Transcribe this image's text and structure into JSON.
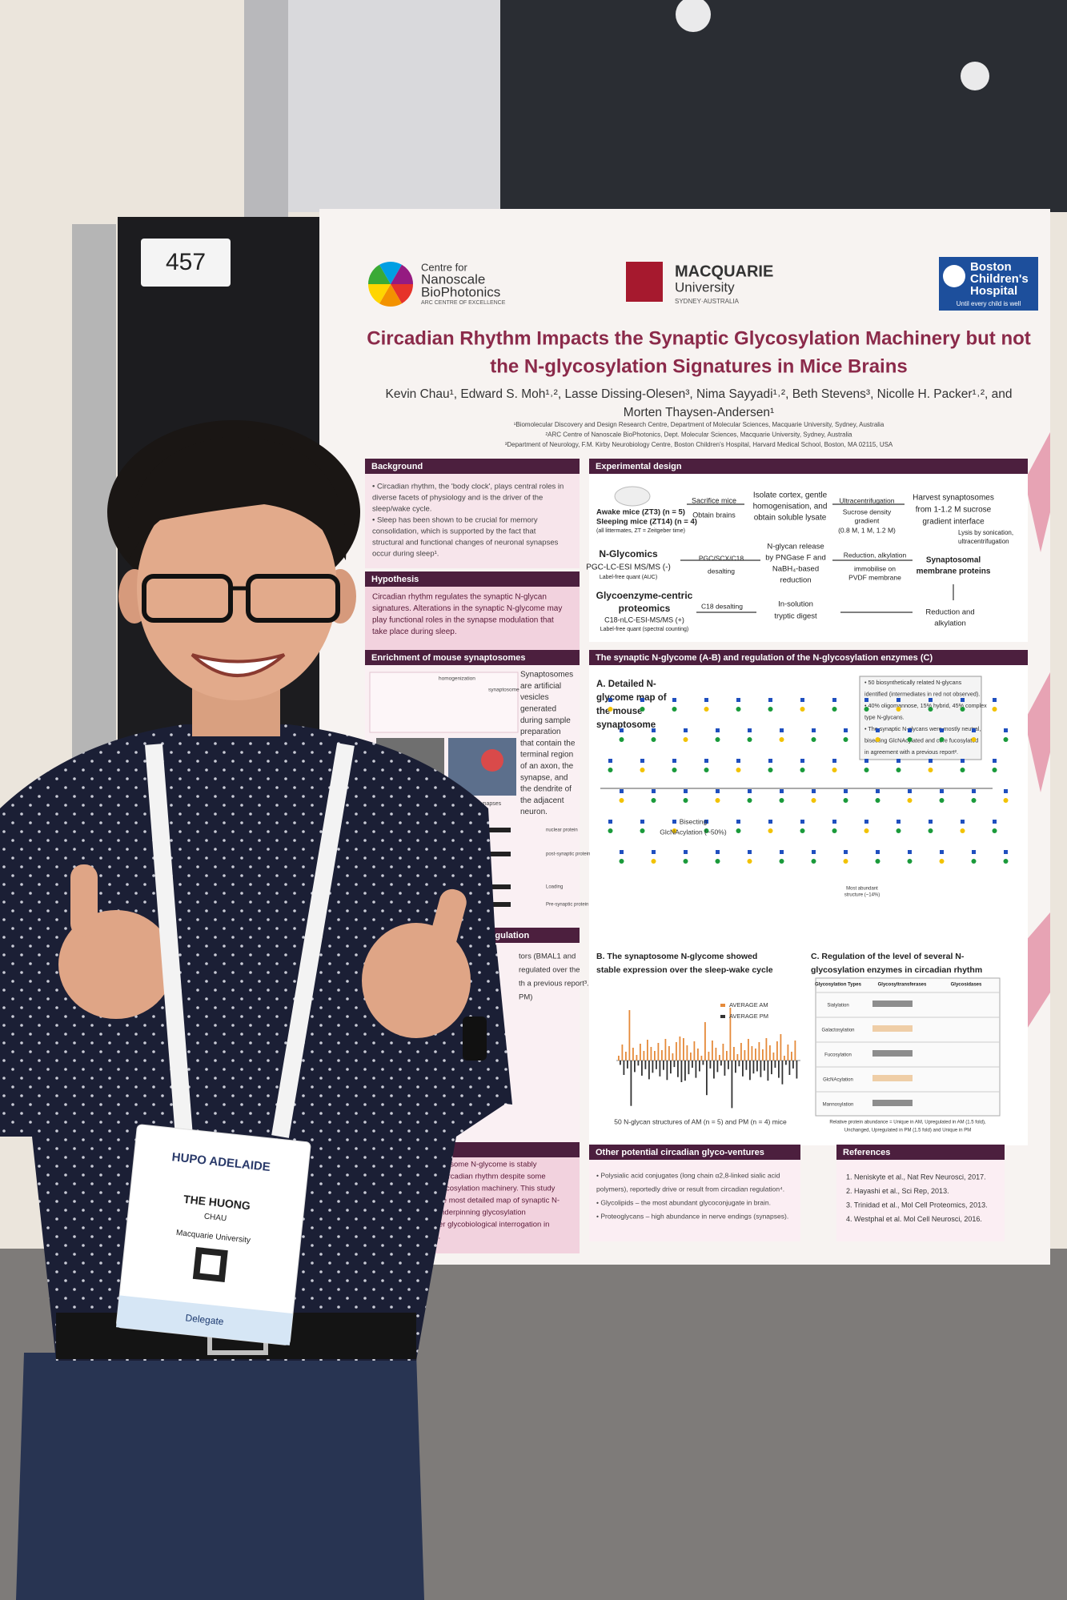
{
  "scene": {
    "poster_number": "457"
  },
  "poster": {
    "logos": {
      "nanoscale": [
        "Centre for",
        "Nanoscale",
        "BioPhotonics",
        "ARC CENTRE OF EXCELLENCE"
      ],
      "macquarie": [
        "MACQUARIE",
        "University",
        "SYDNEY·AUSTRALIA"
      ],
      "boston": [
        "Boston",
        "Children's",
        "Hospital",
        "Until every child is well"
      ]
    },
    "title": [
      "Circadian Rhythm Impacts the Synaptic Glycosylation Machinery but not",
      "the N-glycosylation Signatures in Mice Brains"
    ],
    "authors": [
      "Kevin Chau¹, Edward S. Moh¹˒², Lasse Dissing-Olesen³, Nima Sayyadi¹˒², Beth Stevens³, Nicolle H. Packer¹˒², and",
      "Morten Thaysen-Andersen¹"
    ],
    "affiliations": [
      "¹Biomolecular Discovery and Design Research Centre, Department of Molecular Sciences, Macquarie University, Sydney, Australia",
      "²ARC Centre of Nanoscale BioPhotonics, Dept. Molecular Sciences, Macquarie University, Sydney, Australia",
      "³Department of Neurology, F.M. Kirby Neurobiology Centre, Boston Children's Hospital, Harvard Medical School, Boston, MA 02115, USA"
    ],
    "background": {
      "heading": "Background",
      "lines": [
        "• Circadian rhythm, the 'body clock', plays central roles in",
        "diverse facets of physiology and is the driver of the",
        "sleep/wake cycle.",
        "• Sleep has been shown to be crucial for memory",
        "consolidation, which is supported by the fact that",
        "structural and functional changes of neuronal synapses",
        "occur during sleep¹."
      ]
    },
    "hypothesis": {
      "heading": "Hypothesis",
      "lines": [
        "Circadian rhythm regulates the synaptic N-glycan",
        "signatures. Alterations in the synaptic N-glycome may",
        "play functional roles in the synapse modulation that",
        "take place during sleep."
      ]
    },
    "experimental_design": {
      "heading": "Experimental design",
      "labels": [
        "Awake mice (ZT3) (n = 5)",
        "Sleeping mice (ZT14) (n = 4)",
        "(all littermates, ZT = Zeitgeber time)",
        "Sacrifice mice",
        "Obtain brains",
        "Isolate cortex, gentle",
        "homogenisation, and",
        "obtain soluble lysate",
        "Ultracentrifugation",
        "Sucrose density",
        "gradient",
        "(0.8 M, 1 M, 1.2 M)",
        "Harvest synaptosomes",
        "from 1-1.2 M sucrose",
        "gradient interface",
        "Lysis by sonication,",
        "ultracentrifugation",
        "Synaptosomal",
        "membrane proteins",
        "Reduction, alkylation",
        "immobilise on",
        "PVDF membrane",
        "N-glycan release",
        "by PNGase F and",
        "NaBH₄-based",
        "reduction",
        "PGC/SCX/C18",
        "desalting",
        "N-Glycomics",
        "PGC-LC-ESI MS/MS (-)",
        "Label-free quant (AUC)",
        "Glycoenzyme-centric",
        "proteomics",
        "C18-nLC-ESI-MS/MS (+)",
        "Label-free quant (spectral counting)",
        "C18 desalting",
        "In-solution",
        "tryptic digest",
        "Reduction and",
        "alkylation"
      ]
    },
    "enrichment": {
      "heading": "Enrichment of mouse synaptosomes",
      "lines": [
        "Synaptosomes",
        "are artificial",
        "vesicles",
        "generated",
        "during sample",
        "preparation",
        "that contain the",
        "terminal region",
        "of an axon, the",
        "synapse, and",
        "the dendrite of",
        "the adjacent",
        "neuron."
      ],
      "figure_labels": [
        "homogenization",
        "synaptosome",
        "of enriched synapses",
        "nuclear protein",
        "post-synaptic protein",
        "Loading",
        "Pre-synaptic protein"
      ]
    },
    "regulation": {
      "heading": "regulation",
      "lines": [
        "tors (BMAL1 and",
        "regulated over the",
        "th a previous report³.",
        "PM)"
      ]
    },
    "glycome": {
      "heading": "The synaptic N-glycome (A-B) and regulation of the N-glycosylation enzymes (C)",
      "a_title": [
        "A. Detailed N-",
        "glycome map of",
        "the mouse",
        "synaptosome"
      ],
      "a_notes": [
        "• 50 biosynthetically related N-glycans",
        "identified (intermediates in red not observed).",
        "• 40% oligomannose, 15% hybrid, 45% complex",
        "type N-glycans.",
        "• The synaptic N-glycans were mostly neutral,",
        "bisecting GlcNAcylated and core fucosylated",
        "in agreement with a previous report²."
      ],
      "bisecting": [
        "Bisecting",
        "GlcNAcylation (~50%)"
      ],
      "most_abundant": [
        "Most abundant",
        "structure (~14%)"
      ],
      "b_title": [
        "B. The synaptosome N-glycome showed",
        "stable expression over the sleep-wake cycle"
      ],
      "b_legend": [
        "AVERAGE AM",
        "AVERAGE PM"
      ],
      "b_caption": "50 N-glycan structures of AM (n = 5) and PM (n = 4) mice",
      "c_title": [
        "C. Regulation of the level of several N-",
        "glycosylation enzymes in circadian rhythm"
      ],
      "c_header": [
        "Glycosylation Types",
        "Glycosyltransferases",
        "Glycosidases"
      ],
      "c_rows": [
        "Sialylation",
        "Galactosylation",
        "Fucosylation",
        "GlcNAcylation",
        "Mannosylation"
      ],
      "c_caption": [
        "Relative protein abundance = Unique in AM, Upregulated in AM (1.5 fold),",
        "Unchanged, Upregulated in PM (1.5 fold) and Unique in PM"
      ]
    },
    "conclusions": {
      "heading": "ons",
      "lines": [
        "synaptosome N-glycome is stably",
        "uring circadian rhythm despite some",
        "the glycosylation machinery. This study",
        "to date most detailed map of synaptic N-",
        "the underpinning glycosylation",
        "further glycobiological interrogation in",
        "arch."
      ]
    },
    "other": {
      "heading": "Other potential circadian glyco-ventures",
      "lines": [
        "• Polysialic acid conjugates (long chain α2,8-linked sialic acid",
        "polymers), reportedly drive or result from circadian regulation⁴.",
        "• Glycolipids – the most abundant glycoconjugate in brain.",
        "• Proteoglycans – high abundance in nerve endings (synapses)."
      ]
    },
    "references": {
      "heading": "References",
      "lines": [
        "1. Neniskyte et al., Nat Rev Neurosci, 2017.",
        "2. Hayashi et al., Sci Rep, 2013.",
        "3. Trinidad et al., Mol Cell Proteomics, 2013.",
        "4. Westphal et al. Mol Cell Neurosci, 2016."
      ]
    }
  },
  "badge": {
    "event": "HUPO ADELAIDE",
    "first_name": "THE HUONG",
    "last_name": "CHAU",
    "affiliation": "Macquarie University",
    "role": "Delegate"
  }
}
